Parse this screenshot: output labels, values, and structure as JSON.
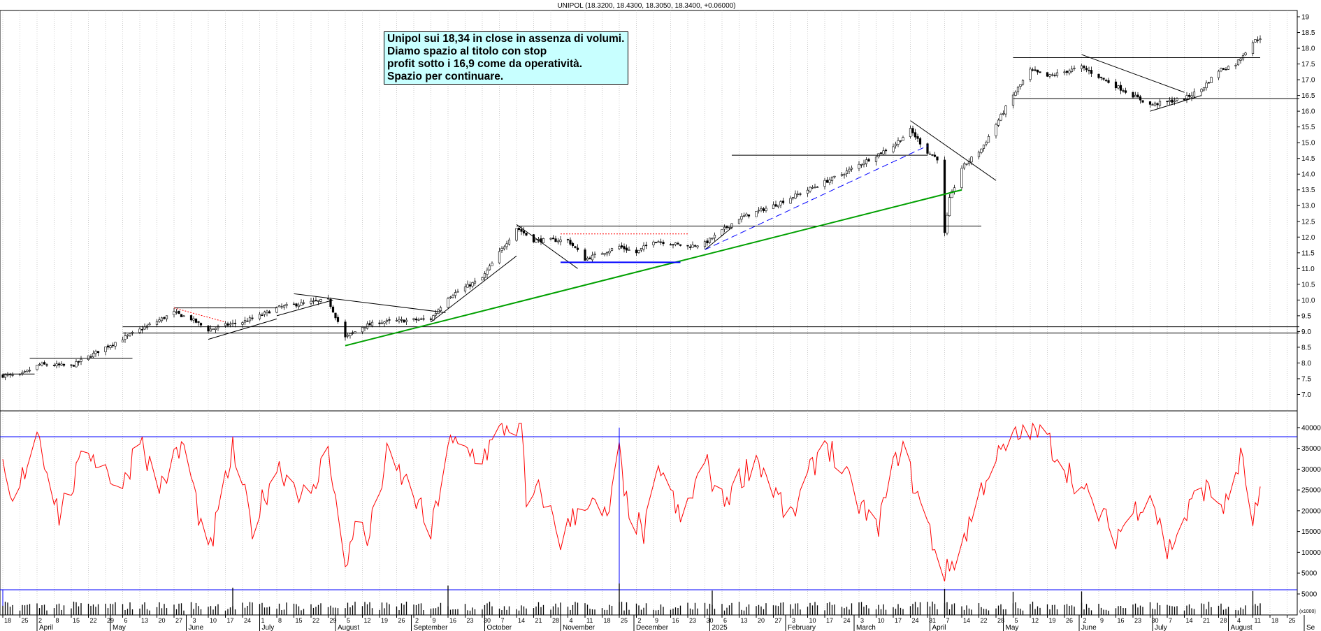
{
  "chart_data": [
    {
      "type": "candlestick",
      "title": "UNIPOL (18.3200, 18.4300, 18.3050, 18.3400, +0.06000)",
      "yticks": [
        "7.0",
        "7.5",
        "8.0",
        "8.5",
        "9.0",
        "9.5",
        "10.0",
        "10.5",
        "11.0",
        "11.5",
        "12.0",
        "12.5",
        "13.0",
        "13.5",
        "14.0",
        "14.5",
        "15.0",
        "15.5",
        "16.0",
        "16.5",
        "17.0",
        "17.5",
        "18.0",
        "18.5",
        "19"
      ],
      "ylim": [
        6.5,
        19.2
      ],
      "anchors": [
        [
          "2024-03-18",
          7.6
        ],
        [
          "2024-03-25",
          7.6
        ],
        [
          "2024-04-02",
          7.95
        ],
        [
          "2024-04-15",
          7.9
        ],
        [
          "2024-04-29",
          8.5
        ],
        [
          "2024-05-13",
          9.05
        ],
        [
          "2024-05-27",
          9.6
        ],
        [
          "2024-06-03",
          9.4
        ],
        [
          "2024-06-10",
          9.05
        ],
        [
          "2024-06-17",
          9.2
        ],
        [
          "2024-06-24",
          9.3
        ],
        [
          "2024-07-01",
          9.5
        ],
        [
          "2024-07-08",
          9.75
        ],
        [
          "2024-07-15",
          9.85
        ],
        [
          "2024-07-29",
          10.0
        ],
        [
          "2024-08-05",
          8.8
        ],
        [
          "2024-08-12",
          9.15
        ],
        [
          "2024-08-19",
          9.3
        ],
        [
          "2024-09-09",
          9.4
        ],
        [
          "2024-09-16",
          10.1
        ],
        [
          "2024-09-30",
          10.7
        ],
        [
          "2024-10-07",
          11.5
        ],
        [
          "2024-10-14",
          12.3
        ],
        [
          "2024-10-21",
          11.9
        ],
        [
          "2024-11-04",
          11.9
        ],
        [
          "2024-11-11",
          11.3
        ],
        [
          "2024-11-25",
          11.7
        ],
        [
          "2024-12-02",
          11.5
        ],
        [
          "2024-12-09",
          11.9
        ],
        [
          "2024-12-23",
          11.7
        ],
        [
          "2024-12-30",
          11.8
        ],
        [
          "2025-01-06",
          12.2
        ],
        [
          "2025-01-13",
          12.6
        ],
        [
          "2025-01-27",
          13.0
        ],
        [
          "2025-02-10",
          13.5
        ],
        [
          "2025-02-24",
          14.0
        ],
        [
          "2025-03-03",
          14.3
        ],
        [
          "2025-03-17",
          14.9
        ],
        [
          "2025-03-24",
          15.4
        ],
        [
          "2025-03-31",
          14.7
        ],
        [
          "2025-04-04",
          14.5
        ],
        [
          "2025-04-07",
          12.1
        ],
        [
          "2025-04-09",
          13.2
        ],
        [
          "2025-04-14",
          14.2
        ],
        [
          "2025-04-22",
          14.8
        ],
        [
          "2025-05-05",
          16.5
        ],
        [
          "2025-05-12",
          17.3
        ],
        [
          "2025-05-19",
          17.1
        ],
        [
          "2025-06-02",
          17.4
        ],
        [
          "2025-06-16",
          16.8
        ],
        [
          "2025-06-30",
          16.2
        ],
        [
          "2025-07-14",
          16.4
        ],
        [
          "2025-07-21",
          16.7
        ],
        [
          "2025-07-28",
          17.3
        ],
        [
          "2025-08-04",
          17.5
        ],
        [
          "2025-08-11",
          18.2
        ],
        [
          "2025-08-14",
          18.34
        ]
      ],
      "lines": [
        {
          "color": "#000000",
          "from": [
            "2024-03-18",
            7.65
          ],
          "to": [
            "2024-03-31",
            7.65
          ]
        },
        {
          "color": "#000000",
          "from": [
            "2024-03-29",
            8.15
          ],
          "to": [
            "2024-05-10",
            8.15
          ]
        },
        {
          "color": "#000000",
          "from": [
            "2024-05-06",
            8.95
          ],
          "to": [
            "2025-08-30",
            8.95
          ]
        },
        {
          "color": "#000000",
          "from": [
            "2024-05-06",
            9.15
          ],
          "to": [
            "2025-08-30",
            9.15
          ]
        },
        {
          "color": "#000000",
          "from": [
            "2024-05-27",
            9.75
          ],
          "to": [
            "2024-07-08",
            9.75
          ]
        },
        {
          "color": "#000000",
          "from": [
            "2024-06-10",
            8.75
          ],
          "to": [
            "2024-07-08",
            9.4
          ]
        },
        {
          "color": "#000000",
          "from": [
            "2024-07-08",
            9.5
          ],
          "to": [
            "2024-07-31",
            10.0
          ]
        },
        {
          "color": "#000000",
          "from": [
            "2024-07-15",
            10.2
          ],
          "to": [
            "2024-09-15",
            9.6
          ]
        },
        {
          "color": "#000000",
          "from": [
            "2024-09-09",
            9.3
          ],
          "to": [
            "2024-10-14",
            11.4
          ]
        },
        {
          "color": "#000000",
          "from": [
            "2024-10-14",
            12.4
          ],
          "to": [
            "2024-11-08",
            11.0
          ]
        },
        {
          "color": "#000000",
          "from": [
            "2024-10-14",
            12.35
          ],
          "to": [
            "2025-04-22",
            12.35
          ]
        },
        {
          "color": "#000000",
          "from": [
            "2024-12-30",
            11.6
          ],
          "to": [
            "2025-01-10",
            12.3
          ]
        },
        {
          "color": "#000000",
          "from": [
            "2025-01-10",
            14.6
          ],
          "to": [
            "2025-03-31",
            14.6
          ]
        },
        {
          "color": "#000000",
          "from": [
            "2025-03-24",
            15.7
          ],
          "to": [
            "2025-04-28",
            13.8
          ]
        },
        {
          "color": "#000000",
          "from": [
            "2025-05-05",
            17.7
          ],
          "to": [
            "2025-08-14",
            17.7
          ]
        },
        {
          "color": "#000000",
          "from": [
            "2025-05-05",
            16.4
          ],
          "to": [
            "2025-08-30",
            16.4
          ]
        },
        {
          "color": "#000000",
          "from": [
            "2025-06-02",
            17.8
          ],
          "to": [
            "2025-07-14",
            16.6
          ]
        },
        {
          "color": "#000000",
          "from": [
            "2025-06-30",
            16.0
          ],
          "to": [
            "2025-07-21",
            16.5
          ]
        },
        {
          "color": "#00a000",
          "from": [
            "2024-08-05",
            8.55
          ],
          "to": [
            "2025-04-14",
            13.5
          ],
          "width": 2
        },
        {
          "color": "#0000ff",
          "from": [
            "2024-11-01",
            11.2
          ],
          "to": [
            "2024-12-20",
            11.2
          ],
          "width": 2
        },
        {
          "color": "#ff0000",
          "from": [
            "2024-11-01",
            12.1
          ],
          "to": [
            "2024-12-23",
            12.1
          ],
          "dash": "2,2"
        },
        {
          "color": "#ff0000",
          "from": [
            "2024-05-27",
            9.75
          ],
          "to": [
            "2024-06-17",
            9.3
          ],
          "dash": "2,2"
        },
        {
          "color": "#0000ff",
          "from": [
            "2024-12-30",
            11.6
          ],
          "to": [
            "2025-03-31",
            14.9
          ],
          "dash": "9,5"
        }
      ]
    },
    {
      "type": "line",
      "series_color": "#ff0000",
      "yticks": [
        "5000",
        "10000",
        "15000",
        "20000",
        "25000",
        "30000",
        "35000",
        "40000"
      ],
      "ylim": [
        2500,
        42000
      ],
      "hlines": [
        37800
      ],
      "anchors": [
        [
          "2024-03-18",
          30000
        ],
        [
          "2024-03-22",
          20000
        ],
        [
          "2024-04-01",
          40000
        ],
        [
          "2024-04-10",
          19000
        ],
        [
          "2024-04-22",
          35000
        ],
        [
          "2024-05-06",
          25000
        ],
        [
          "2024-05-13",
          39000
        ],
        [
          "2024-05-20",
          25000
        ],
        [
          "2024-05-31",
          36000
        ],
        [
          "2024-06-10",
          8500
        ],
        [
          "2024-06-20",
          34500
        ],
        [
          "2024-06-28",
          16000
        ],
        [
          "2024-07-08",
          31000
        ],
        [
          "2024-07-22",
          22000
        ],
        [
          "2024-07-29",
          36500
        ],
        [
          "2024-08-05",
          4500
        ],
        [
          "2024-08-09",
          19000
        ],
        [
          "2024-08-14",
          12000
        ],
        [
          "2024-08-22",
          33000
        ],
        [
          "2024-09-02",
          24000
        ],
        [
          "2024-09-09",
          14000
        ],
        [
          "2024-09-16",
          36000
        ],
        [
          "2024-09-30",
          33000
        ],
        [
          "2024-10-09",
          40000
        ],
        [
          "2024-10-16",
          40500
        ],
        [
          "2024-10-18",
          21000
        ],
        [
          "2024-10-24",
          25000
        ],
        [
          "2024-11-01",
          13000
        ],
        [
          "2024-11-11",
          23000
        ],
        [
          "2024-11-20",
          17500
        ],
        [
          "2024-11-25",
          34000
        ],
        [
          "2024-11-27",
          23000
        ],
        [
          "2024-12-05",
          14000
        ],
        [
          "2024-12-12",
          31000
        ],
        [
          "2024-12-20",
          17000
        ],
        [
          "2024-12-30",
          32000
        ],
        [
          "2025-01-06",
          22000
        ],
        [
          "2025-01-20",
          33000
        ],
        [
          "2025-02-03",
          17500
        ],
        [
          "2025-02-17",
          37500
        ],
        [
          "2025-02-28",
          25000
        ],
        [
          "2025-03-10",
          15000
        ],
        [
          "2025-03-20",
          36000
        ],
        [
          "2025-03-31",
          16500
        ],
        [
          "2025-04-07",
          4000
        ],
        [
          "2025-04-14",
          12000
        ],
        [
          "2025-04-25",
          30000
        ],
        [
          "2025-05-05",
          37000
        ],
        [
          "2025-05-12",
          40000
        ],
        [
          "2025-05-19",
          37000
        ],
        [
          "2025-06-02",
          25000
        ],
        [
          "2025-06-16",
          14000
        ],
        [
          "2025-06-30",
          25000
        ],
        [
          "2025-07-07",
          10000
        ],
        [
          "2025-07-21",
          26000
        ],
        [
          "2025-07-31",
          21000
        ],
        [
          "2025-08-06",
          33000
        ],
        [
          "2025-08-11",
          18000
        ],
        [
          "2025-08-18",
          29000
        ]
      ],
      "spike": {
        "x": "2024-11-25",
        "y_top": 40000
      }
    },
    {
      "type": "bar",
      "unit_label": "(x1000)",
      "yticks": [
        "5000"
      ],
      "ylim": [
        0,
        7500
      ],
      "hlines": [
        6000
      ],
      "spikes": [
        [
          "2024-06-20",
          6500
        ],
        [
          "2024-09-16",
          7000
        ],
        [
          "2024-11-25",
          7500
        ],
        [
          "2025-01-02",
          5800
        ],
        [
          "2025-04-07",
          6200
        ],
        [
          "2025-05-05",
          5500
        ],
        [
          "2025-06-02",
          5600
        ],
        [
          "2025-08-11",
          5700
        ]
      ]
    }
  ],
  "x_axis": {
    "start": "2024-03-18",
    "end": "2025-08-26",
    "day_ticks": [
      "18",
      "25",
      "2",
      "8",
      "15",
      "22",
      "29",
      "6",
      "13",
      "20",
      "27",
      "3",
      "10",
      "17",
      "24",
      "1",
      "8",
      "15",
      "22",
      "29",
      "5",
      "12",
      "19",
      "26",
      "2",
      "9",
      "16",
      "23",
      "30",
      "7",
      "14",
      "21",
      "28",
      "4",
      "11",
      "18",
      "25",
      "2",
      "9",
      "16",
      "23",
      "30",
      "6",
      "13",
      "20",
      "27",
      "3",
      "10",
      "17",
      "24",
      "3",
      "10",
      "17",
      "24",
      "31",
      "7",
      "14",
      "22",
      "28",
      "5",
      "12",
      "19",
      "26",
      "2",
      "9",
      "16",
      "23",
      "30",
      "7",
      "14",
      "21",
      "28",
      "4",
      "11",
      "18",
      "25",
      "1"
    ],
    "months": [
      "April",
      "May",
      "June",
      "July",
      "August",
      "September",
      "October",
      "November",
      "December",
      "2025",
      "February",
      "March",
      "April",
      "May",
      "June",
      "July",
      "August",
      "Se"
    ]
  },
  "annotation": {
    "lines": [
      "Unipol sui 18,34 in close in assenza di volumi.",
      "Diamo spazio al titolo con stop",
      "profit sotto i 16,9 come da operatività.",
      "Spazio per continuare."
    ]
  }
}
